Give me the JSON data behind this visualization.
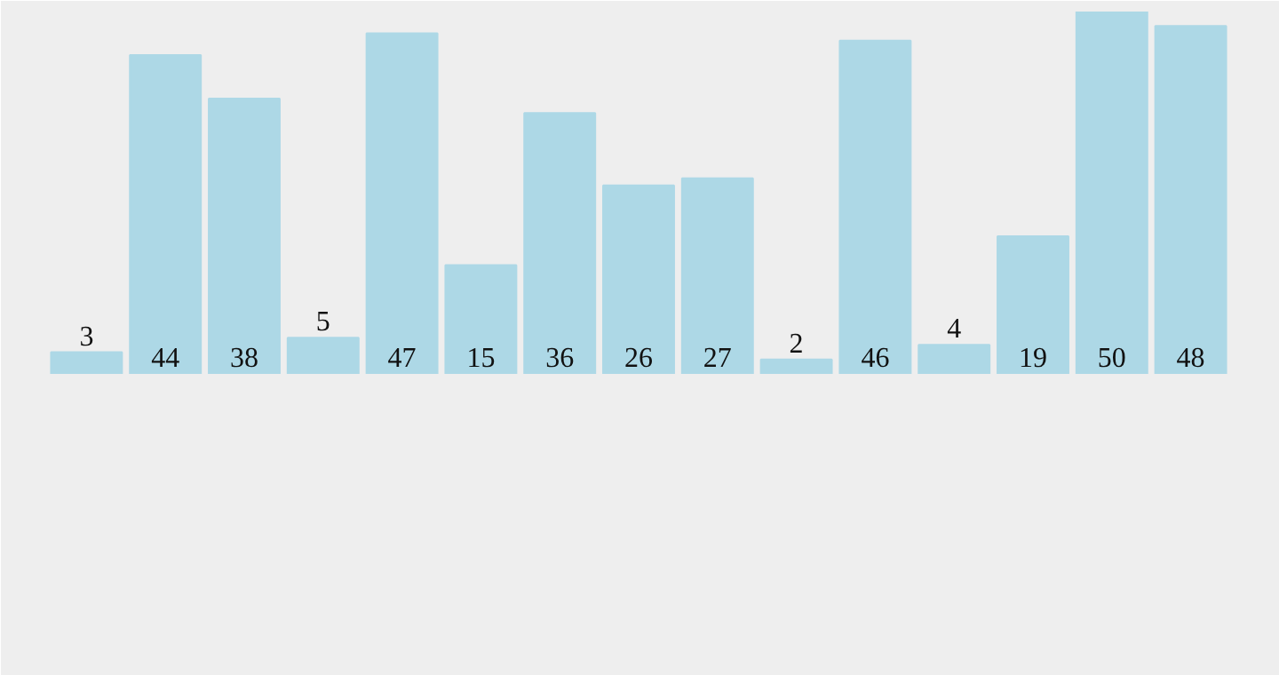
{
  "chart_data": {
    "type": "bar",
    "categories": [
      null,
      null,
      null,
      null,
      null,
      null,
      null,
      null,
      null,
      null,
      null,
      null,
      null,
      null,
      null
    ],
    "values": [
      3,
      44,
      38,
      5,
      47,
      15,
      36,
      26,
      27,
      2,
      46,
      4,
      19,
      50,
      48
    ],
    "color": "#add8e6",
    "data_labels": true,
    "grid": false
  }
}
